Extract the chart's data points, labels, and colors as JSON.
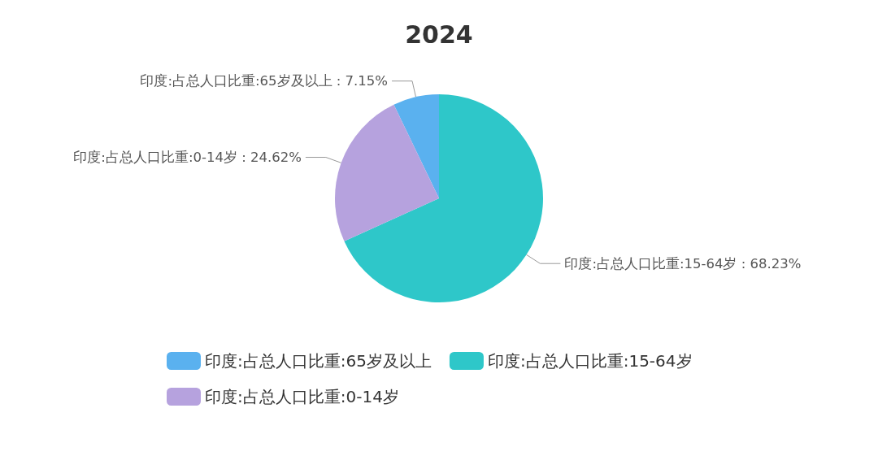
{
  "chart_data": {
    "type": "pie",
    "title": "2024",
    "categories": [
      "印度:占总人口比重:65岁及以上",
      "印度:占总人口比重:15-64岁",
      "印度:占总人口比重:0-14岁"
    ],
    "values": [
      7.15,
      68.23,
      24.62
    ],
    "colors": [
      "#5ab1ef",
      "#2ec7c9",
      "#b6a2de"
    ],
    "value_labels": [
      "印度:占总人口比重:65岁及以上 : 7.15%",
      "印度:占总人口比重:15-64岁 : 68.23%",
      "印度:占总人口比重:0-14岁 : 24.62%"
    ],
    "legend": "bottom"
  }
}
